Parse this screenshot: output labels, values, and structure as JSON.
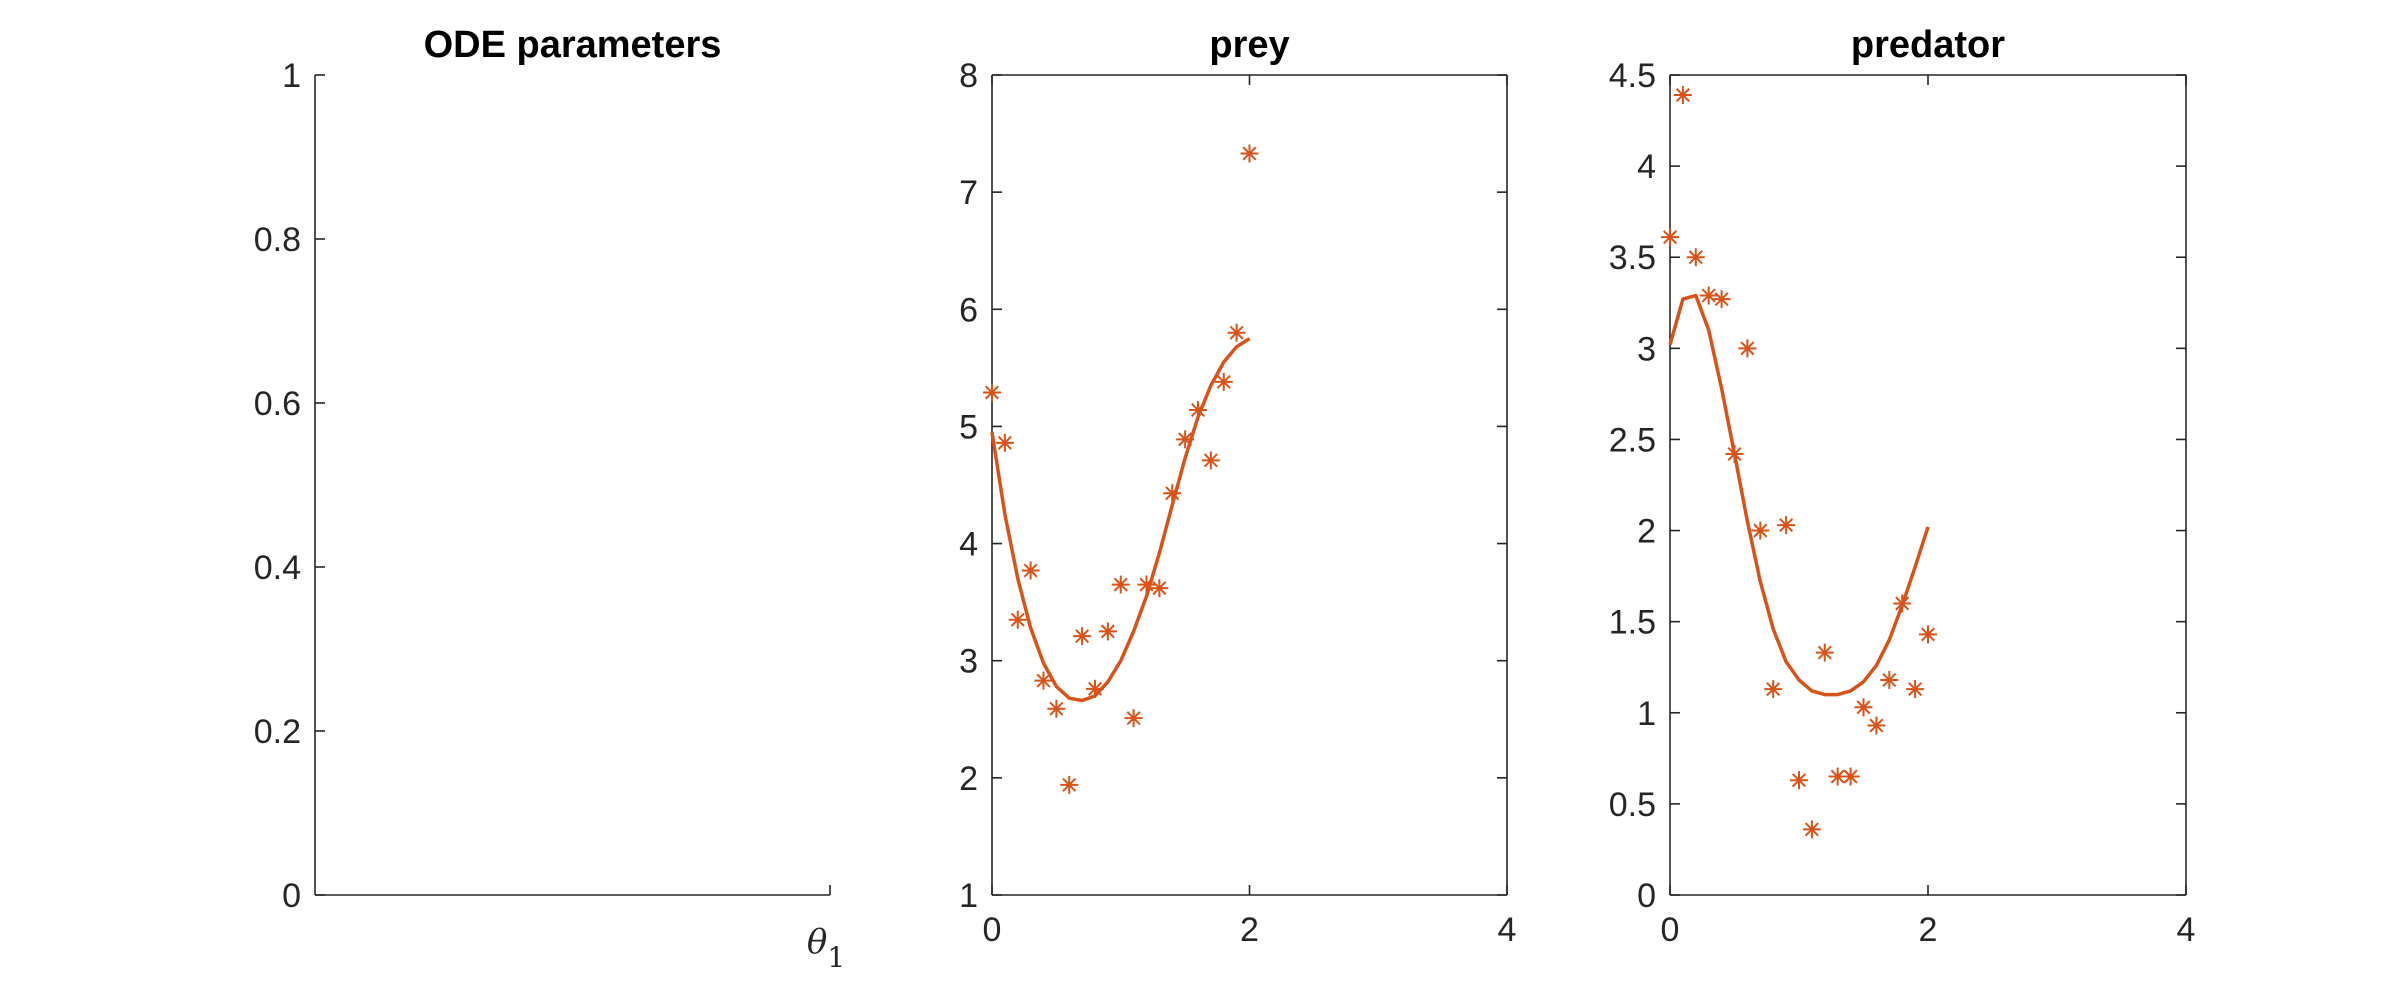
{
  "colors": {
    "series": "#D95319",
    "axis": "#262626",
    "title": "#000000"
  },
  "chart_data": [
    {
      "type": "scatter",
      "title": "ODE parameters",
      "xlabel": "θ",
      "xlabel_subscript": "1",
      "ylabel": "",
      "xlim": [
        0,
        1
      ],
      "ylim": [
        0,
        1
      ],
      "yticks": [
        "0",
        "0.2",
        "0.4",
        "0.6",
        "0.8",
        "1"
      ],
      "xticks": [],
      "series": []
    },
    {
      "type": "line",
      "title": "prey",
      "xlabel": "",
      "ylabel": "",
      "xlim": [
        0,
        4
      ],
      "ylim": [
        1,
        8
      ],
      "xticks": [
        "0",
        "2",
        "4"
      ],
      "yticks": [
        "1",
        "2",
        "3",
        "4",
        "5",
        "6",
        "7",
        "8"
      ],
      "observations": {
        "x": [
          0,
          0.1,
          0.2,
          0.3,
          0.4,
          0.5,
          0.6,
          0.7,
          0.8,
          0.9,
          1.0,
          1.1,
          1.2,
          1.3,
          1.4,
          1.5,
          1.6,
          1.7,
          1.8,
          1.9,
          2.0
        ],
        "y": [
          5.29,
          4.86,
          3.35,
          3.77,
          2.83,
          2.59,
          1.94,
          3.21,
          2.76,
          3.25,
          3.65,
          2.51,
          3.65,
          3.62,
          4.43,
          4.89,
          5.14,
          4.71,
          5.38,
          5.8,
          7.33
        ]
      },
      "fit": {
        "x": [
          0,
          0.1,
          0.2,
          0.3,
          0.4,
          0.5,
          0.6,
          0.7,
          0.8,
          0.9,
          1.0,
          1.1,
          1.2,
          1.3,
          1.4,
          1.5,
          1.6,
          1.7,
          1.8,
          1.9,
          2.0
        ],
        "y": [
          4.95,
          4.25,
          3.7,
          3.28,
          2.98,
          2.78,
          2.68,
          2.66,
          2.7,
          2.82,
          3.0,
          3.25,
          3.55,
          3.92,
          4.33,
          4.73,
          5.08,
          5.35,
          5.55,
          5.68,
          5.75
        ]
      }
    },
    {
      "type": "line",
      "title": "predator",
      "xlabel": "",
      "ylabel": "",
      "xlim": [
        0,
        4
      ],
      "ylim": [
        0,
        4.5
      ],
      "xticks": [
        "0",
        "2",
        "4"
      ],
      "yticks": [
        "0",
        "0.5",
        "1",
        "1.5",
        "2",
        "2.5",
        "3",
        "3.5",
        "4",
        "4.5"
      ],
      "observations": {
        "x": [
          0,
          0.1,
          0.2,
          0.3,
          0.4,
          0.5,
          0.6,
          0.7,
          0.8,
          0.9,
          1.0,
          1.1,
          1.2,
          1.3,
          1.4,
          1.5,
          1.6,
          1.7,
          1.8,
          1.9,
          2.0
        ],
        "y": [
          3.61,
          4.39,
          3.5,
          3.29,
          3.27,
          2.42,
          3.0,
          2.0,
          1.13,
          2.03,
          0.63,
          0.36,
          1.33,
          0.65,
          0.65,
          1.03,
          0.93,
          1.18,
          1.6,
          1.13,
          1.43
        ]
      },
      "fit": {
        "x": [
          0,
          0.1,
          0.2,
          0.3,
          0.4,
          0.5,
          0.6,
          0.7,
          0.8,
          0.9,
          1.0,
          1.1,
          1.2,
          1.3,
          1.4,
          1.5,
          1.6,
          1.7,
          1.8,
          1.9,
          2.0
        ],
        "y": [
          3.02,
          3.27,
          3.29,
          3.1,
          2.78,
          2.42,
          2.05,
          1.72,
          1.46,
          1.28,
          1.18,
          1.12,
          1.1,
          1.1,
          1.12,
          1.17,
          1.26,
          1.4,
          1.59,
          1.8,
          2.02
        ]
      }
    }
  ]
}
